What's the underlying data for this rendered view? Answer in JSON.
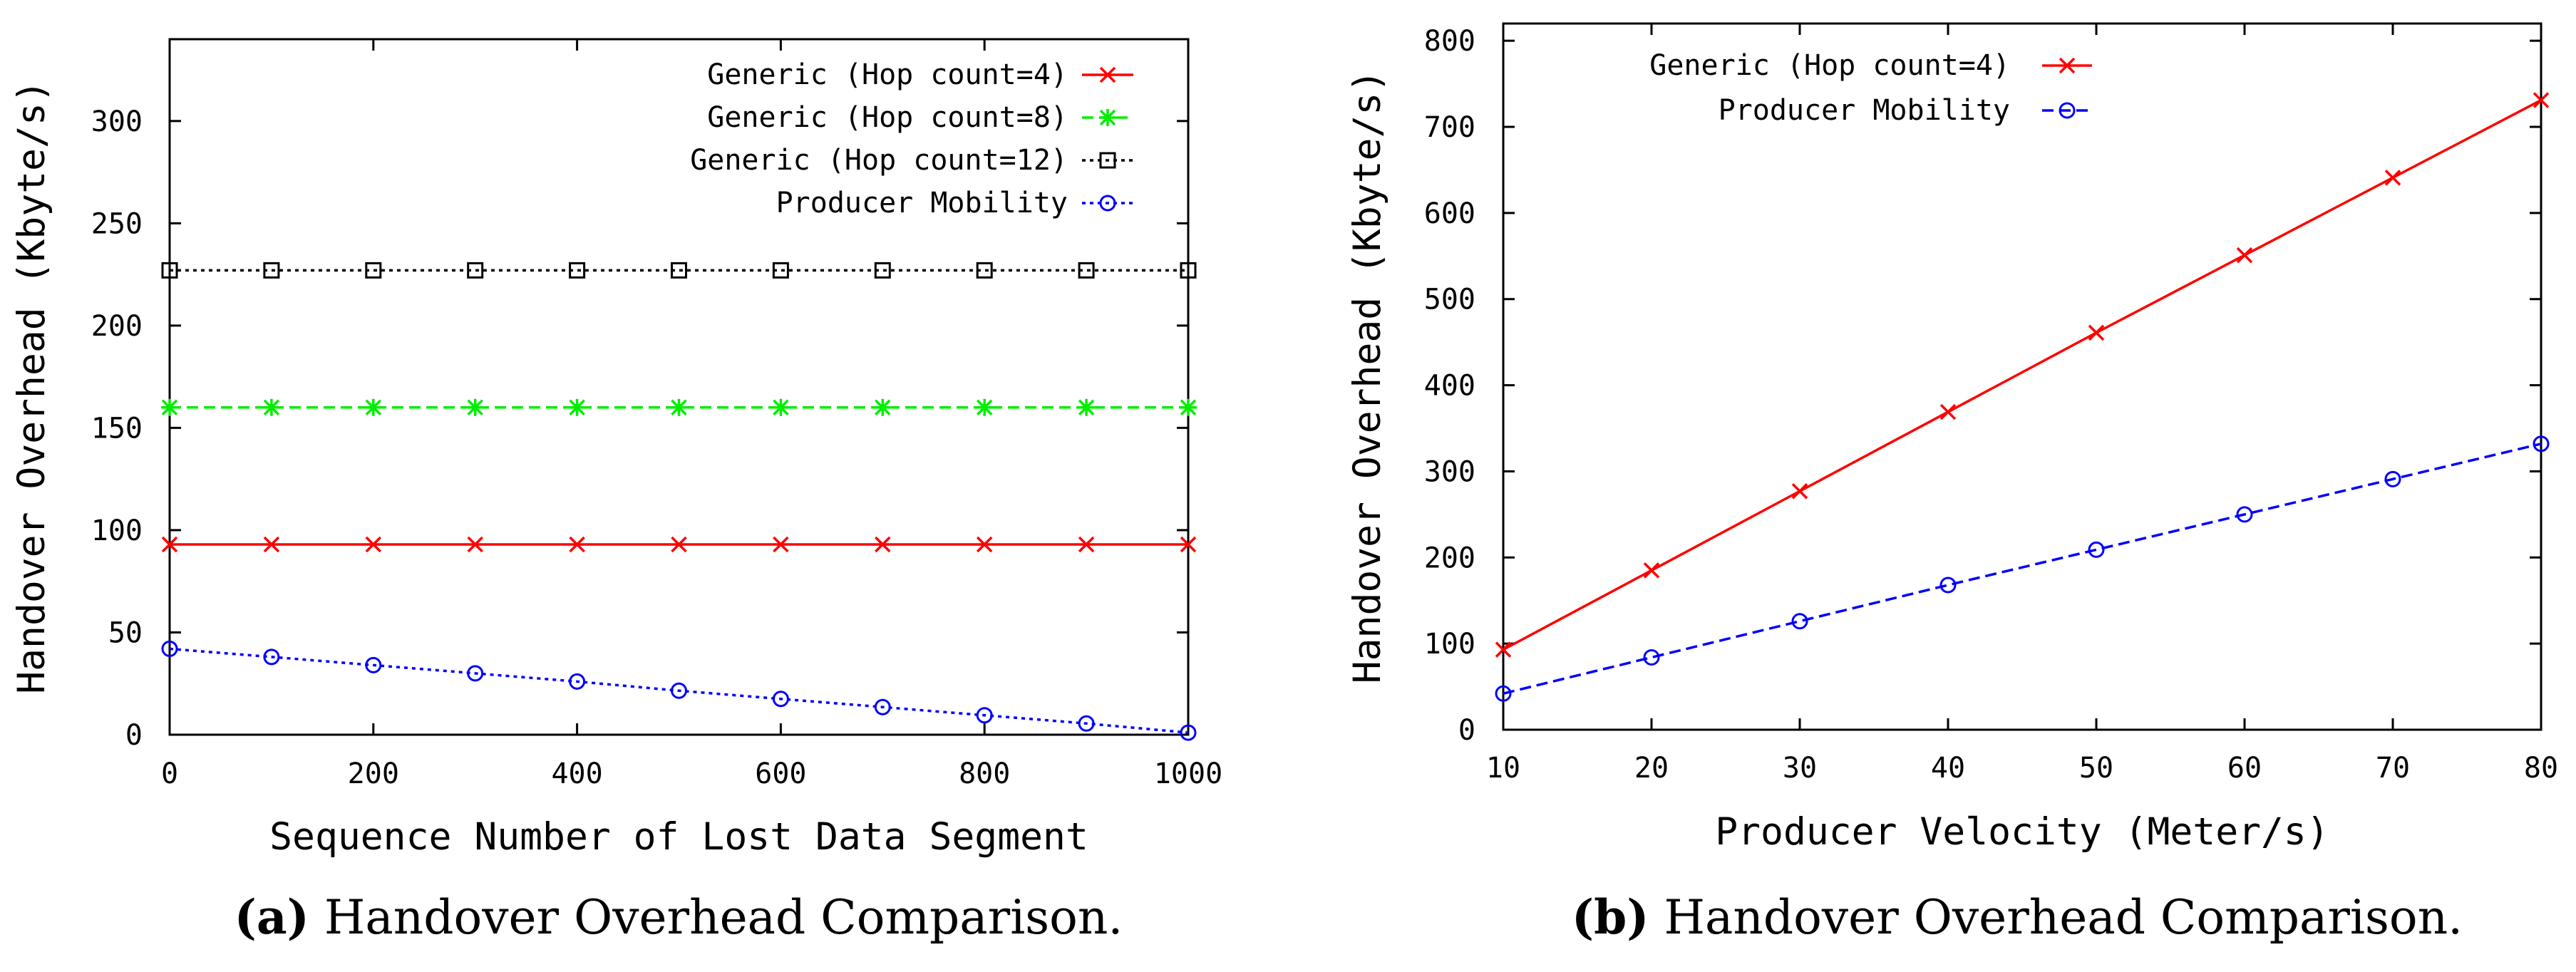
{
  "chart_data": [
    {
      "type": "line",
      "xlabel": "Sequence Number of Lost Data Segment",
      "ylabel": "Handover Overhead (Kbyte/s)",
      "xlim": [
        0,
        1000
      ],
      "ylim": [
        0,
        340
      ],
      "xticks": [
        0,
        200,
        400,
        600,
        800,
        1000
      ],
      "yticks": [
        0,
        50,
        100,
        150,
        200,
        250,
        300
      ],
      "legend_position": "top-right",
      "caption": {
        "tag": "(a)",
        "text": "Handover Overhead Comparison."
      },
      "series": [
        {
          "name": "Generic (Hop count=4)",
          "color": "#ff0000",
          "marker": "x",
          "dash": "solid",
          "x": [
            0,
            100,
            200,
            300,
            400,
            500,
            600,
            700,
            800,
            900,
            1000
          ],
          "y": [
            93,
            93,
            93,
            93,
            93,
            93,
            93,
            93,
            93,
            93,
            93
          ]
        },
        {
          "name": "Generic (Hop count=8)",
          "color": "#00ee00",
          "marker": "star",
          "dash": "dashed",
          "x": [
            0,
            100,
            200,
            300,
            400,
            500,
            600,
            700,
            800,
            900,
            1000
          ],
          "y": [
            160,
            160,
            160,
            160,
            160,
            160,
            160,
            160,
            160,
            160,
            160
          ]
        },
        {
          "name": "Generic (Hop count=12)",
          "color": "#000000",
          "marker": "square",
          "dash": "dotted",
          "x": [
            0,
            100,
            200,
            300,
            400,
            500,
            600,
            700,
            800,
            900,
            1000
          ],
          "y": [
            227,
            227,
            227,
            227,
            227,
            227,
            227,
            227,
            227,
            227,
            227
          ]
        },
        {
          "name": "Producer Mobility",
          "color": "#0000ff",
          "marker": "circle",
          "dash": "dotted",
          "x": [
            0,
            100,
            200,
            300,
            400,
            500,
            600,
            700,
            800,
            900,
            1000
          ],
          "y": [
            42,
            38,
            34,
            30,
            26,
            21.5,
            17.5,
            13.5,
            9.5,
            5.5,
            1
          ]
        }
      ]
    },
    {
      "type": "line",
      "xlabel": "Producer Velocity (Meter/s)",
      "ylabel": "Handover Overhead (Kbyte/s)",
      "xlim": [
        10,
        80
      ],
      "ylim": [
        0,
        820
      ],
      "xticks": [
        10,
        20,
        30,
        40,
        50,
        60,
        70,
        80
      ],
      "yticks": [
        0,
        100,
        200,
        300,
        400,
        500,
        600,
        700,
        800
      ],
      "legend_position": "top-left",
      "caption": {
        "tag": "(b)",
        "text": "Handover Overhead Comparison."
      },
      "series": [
        {
          "name": "Generic (Hop count=4)",
          "color": "#ff0000",
          "marker": "x",
          "dash": "solid",
          "x": [
            10,
            20,
            30,
            40,
            50,
            60,
            70,
            80
          ],
          "y": [
            93,
            185,
            277,
            369,
            461,
            551,
            641,
            731
          ]
        },
        {
          "name": "Producer Mobility",
          "color": "#0000ff",
          "marker": "circle",
          "dash": "dashed",
          "x": [
            10,
            20,
            30,
            40,
            50,
            60,
            70,
            80
          ],
          "y": [
            42,
            84,
            126,
            168,
            209,
            250,
            291,
            332
          ]
        }
      ]
    }
  ]
}
